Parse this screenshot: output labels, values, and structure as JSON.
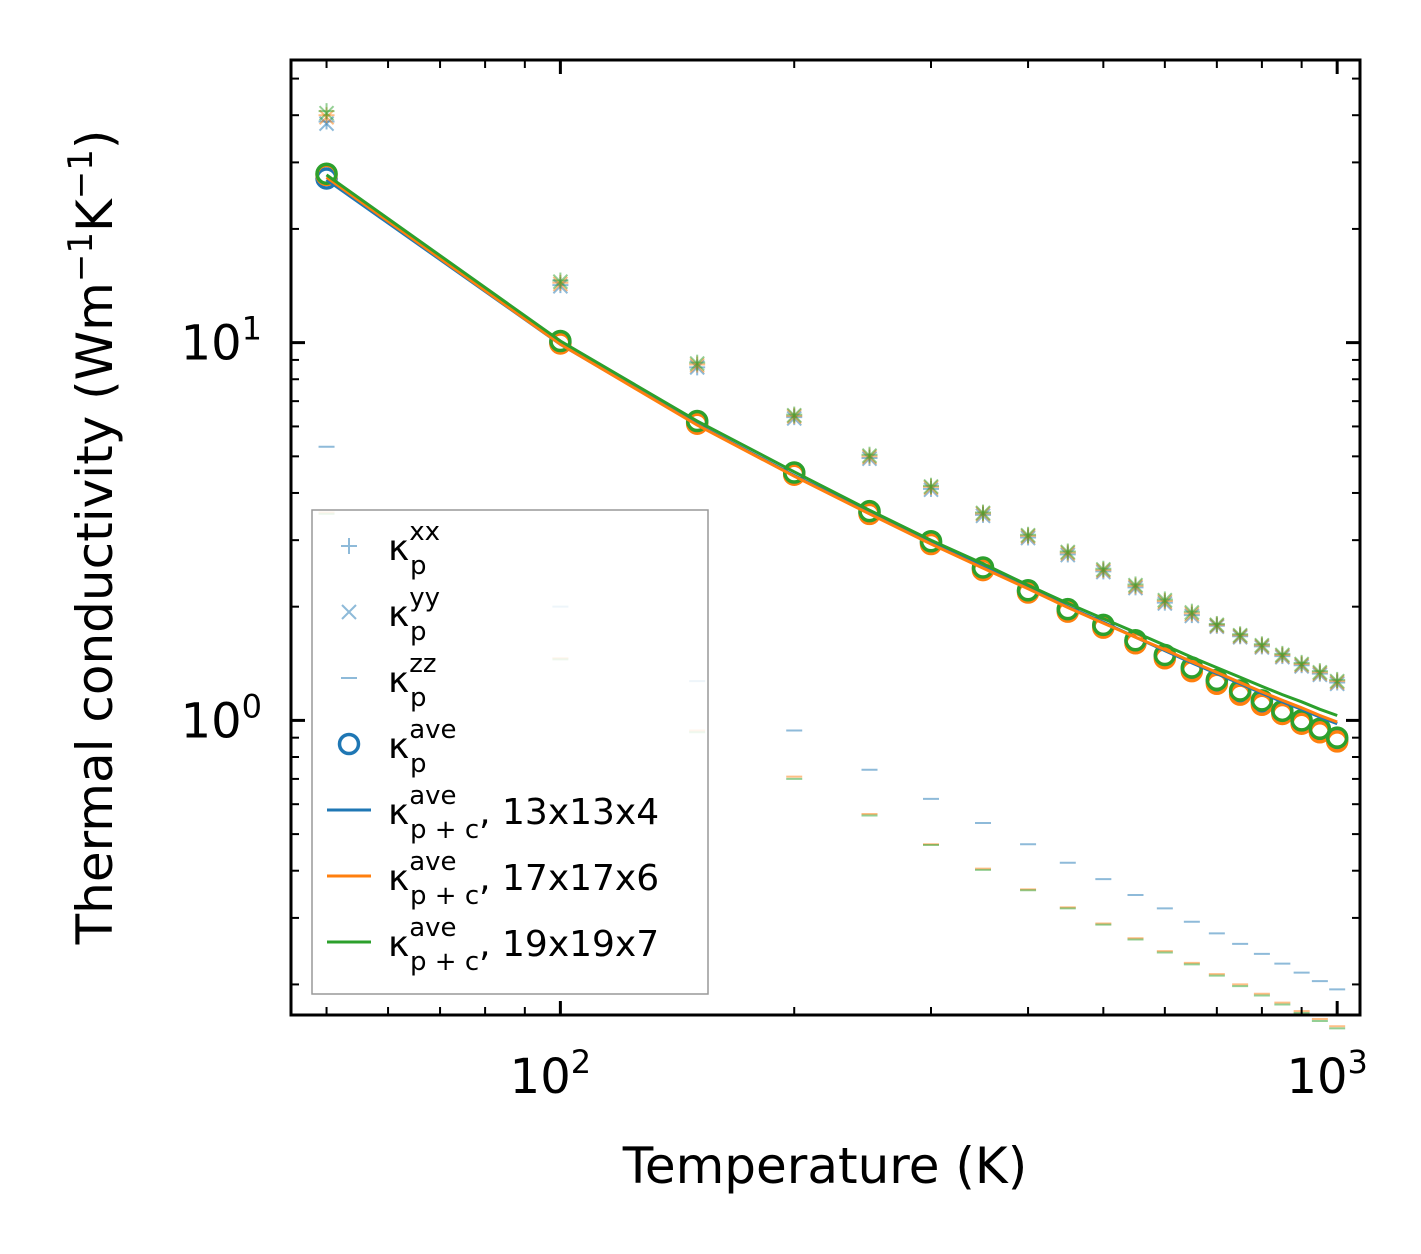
{
  "chart_data": {
    "type": "scatter",
    "xscale": "log",
    "yscale": "log",
    "xlim": [
      45,
      1070
    ],
    "ylim": [
      0.166,
      56
    ],
    "xlabel": "Temperature (K)",
    "ylabel_main": "Thermal conductivity (Wm",
    "ylabel_sup1": "−1",
    "ylabel_mid": "K",
    "ylabel_sup2": "−1",
    "ylabel_end": ")",
    "x_major_ticks": [
      {
        "value": 100,
        "base": "10",
        "exp": "2"
      },
      {
        "value": 1000,
        "base": "10",
        "exp": "3"
      }
    ],
    "y_major_ticks": [
      {
        "value": 1,
        "base": "10",
        "exp": "0"
      },
      {
        "value": 10,
        "base": "10",
        "exp": "1"
      }
    ],
    "x": [
      50,
      100,
      150,
      200,
      250,
      300,
      350,
      400,
      450,
      500,
      550,
      600,
      650,
      700,
      750,
      800,
      850,
      900,
      950,
      1000
    ],
    "markers": [
      {
        "name": "kxx-13x13x4",
        "marker": "plus",
        "color": "#1f77b4",
        "opacity": 0.5,
        "values": [
          38.5,
          14.2,
          8.6,
          6.35,
          4.95,
          4.1,
          3.5,
          3.05,
          2.75,
          2.48,
          2.25,
          2.05,
          1.9,
          1.78,
          1.67,
          1.57,
          1.48,
          1.4,
          1.33,
          1.26
        ]
      },
      {
        "name": "kyy-13x13x4",
        "marker": "x",
        "color": "#1f77b4",
        "opacity": 0.5,
        "values": [
          38.0,
          14.1,
          8.6,
          6.3,
          4.93,
          4.08,
          3.48,
          3.04,
          2.74,
          2.47,
          2.24,
          2.04,
          1.89,
          1.77,
          1.66,
          1.56,
          1.47,
          1.39,
          1.32,
          1.25
        ]
      },
      {
        "name": "kzz-13x13x4",
        "marker": "dash",
        "color": "#1f77b4",
        "opacity": 0.5,
        "values": [
          5.3,
          2.0,
          1.27,
          0.94,
          0.74,
          0.62,
          0.535,
          0.47,
          0.42,
          0.38,
          0.345,
          0.318,
          0.293,
          0.273,
          0.256,
          0.241,
          0.227,
          0.215,
          0.204,
          0.194
        ]
      },
      {
        "name": "kxx-17x17x6",
        "marker": "plus",
        "color": "#ff7f0e",
        "opacity": 0.5,
        "values": [
          40.0,
          14.4,
          8.75,
          6.4,
          5.0,
          4.15,
          3.53,
          3.08,
          2.78,
          2.5,
          2.27,
          2.07,
          1.92,
          1.79,
          1.68,
          1.58,
          1.49,
          1.41,
          1.34,
          1.27
        ]
      },
      {
        "name": "kyy-17x17x6",
        "marker": "x",
        "color": "#ff7f0e",
        "opacity": 0.5,
        "values": [
          39.5,
          14.3,
          8.7,
          6.38,
          4.98,
          4.13,
          3.52,
          3.07,
          2.77,
          2.49,
          2.26,
          2.06,
          1.91,
          1.78,
          1.67,
          1.57,
          1.48,
          1.4,
          1.33,
          1.26
        ]
      },
      {
        "name": "kzz-17x17x6",
        "marker": "dash",
        "color": "#ff7f0e",
        "opacity": 0.5,
        "values": [
          3.55,
          1.46,
          0.94,
          0.71,
          0.565,
          0.47,
          0.405,
          0.357,
          0.32,
          0.29,
          0.265,
          0.245,
          0.228,
          0.213,
          0.2,
          0.189,
          0.179,
          0.17,
          0.162,
          0.155
        ]
      },
      {
        "name": "kxx-19x19x7",
        "marker": "plus",
        "color": "#2ca02c",
        "opacity": 0.5,
        "values": [
          41.0,
          14.6,
          8.85,
          6.45,
          5.05,
          4.18,
          3.55,
          3.1,
          2.8,
          2.52,
          2.29,
          2.09,
          1.94,
          1.8,
          1.69,
          1.59,
          1.5,
          1.42,
          1.35,
          1.28
        ]
      },
      {
        "name": "kyy-19x19x7",
        "marker": "x",
        "color": "#2ca02c",
        "opacity": 0.5,
        "values": [
          40.5,
          14.5,
          8.8,
          6.42,
          5.02,
          4.16,
          3.54,
          3.09,
          2.79,
          2.51,
          2.28,
          2.08,
          1.93,
          1.79,
          1.68,
          1.58,
          1.49,
          1.41,
          1.34,
          1.27
        ]
      },
      {
        "name": "kzz-19x19x7",
        "marker": "dash",
        "color": "#2ca02c",
        "opacity": 0.5,
        "values": [
          3.52,
          1.45,
          0.93,
          0.7,
          0.56,
          0.468,
          0.402,
          0.355,
          0.318,
          0.288,
          0.263,
          0.243,
          0.226,
          0.211,
          0.198,
          0.187,
          0.177,
          0.168,
          0.16,
          0.153
        ]
      },
      {
        "name": "kave-13x13x4",
        "marker": "circle",
        "color": "#1f77b4",
        "opacity": 1,
        "values": [
          27.2,
          10.0,
          6.15,
          4.5,
          3.55,
          2.96,
          2.52,
          2.2,
          1.96,
          1.78,
          1.62,
          1.48,
          1.37,
          1.27,
          1.19,
          1.12,
          1.05,
          0.99,
          0.94,
          0.89
        ]
      },
      {
        "name": "kave-17x17x6",
        "marker": "circle",
        "color": "#ff7f0e",
        "opacity": 1,
        "values": [
          27.8,
          9.95,
          6.1,
          4.47,
          3.52,
          2.93,
          2.5,
          2.18,
          1.94,
          1.76,
          1.6,
          1.46,
          1.35,
          1.25,
          1.17,
          1.1,
          1.04,
          0.98,
          0.93,
          0.88
        ]
      },
      {
        "name": "kave-19x19x7",
        "marker": "circle",
        "color": "#2ca02c",
        "opacity": 1,
        "values": [
          28.0,
          10.1,
          6.2,
          4.53,
          3.58,
          2.98,
          2.54,
          2.21,
          1.97,
          1.79,
          1.63,
          1.49,
          1.38,
          1.28,
          1.2,
          1.13,
          1.06,
          1.0,
          0.95,
          0.9
        ]
      }
    ],
    "lines": [
      {
        "name": "kpc-13x13x4",
        "color": "#1f77b4",
        "values": [
          27.0,
          9.9,
          6.08,
          4.45,
          3.55,
          2.96,
          2.55,
          2.25,
          2.0,
          1.82,
          1.66,
          1.53,
          1.42,
          1.33,
          1.25,
          1.18,
          1.12,
          1.07,
          1.02,
          0.98
        ]
      },
      {
        "name": "kpc-17x17x6",
        "color": "#ff7f0e",
        "values": [
          27.4,
          9.9,
          6.05,
          4.43,
          3.52,
          2.93,
          2.53,
          2.23,
          1.99,
          1.81,
          1.66,
          1.54,
          1.43,
          1.34,
          1.26,
          1.19,
          1.13,
          1.08,
          1.03,
          0.99
        ]
      },
      {
        "name": "kpc-19x19x7",
        "color": "#2ca02c",
        "values": [
          27.8,
          10.1,
          6.2,
          4.55,
          3.6,
          3.0,
          2.6,
          2.28,
          2.04,
          1.86,
          1.71,
          1.58,
          1.47,
          1.38,
          1.3,
          1.23,
          1.17,
          1.12,
          1.07,
          1.03
        ]
      }
    ],
    "legend": {
      "position": "lower-left",
      "entries": [
        {
          "marker": "plus",
          "color": "#1f77b4",
          "opacity": 0.5,
          "base": "κ",
          "sup": "xx",
          "sub": "p",
          "suffix": ""
        },
        {
          "marker": "x",
          "color": "#1f77b4",
          "opacity": 0.5,
          "base": "κ",
          "sup": "yy",
          "sub": "p",
          "suffix": ""
        },
        {
          "marker": "dash",
          "color": "#1f77b4",
          "opacity": 0.5,
          "base": "κ",
          "sup": "zz",
          "sub": "p",
          "suffix": ""
        },
        {
          "marker": "circle",
          "color": "#1f77b4",
          "opacity": 1,
          "base": "κ",
          "sup": "ave",
          "sub": "p",
          "suffix": ""
        },
        {
          "marker": "line",
          "color": "#1f77b4",
          "opacity": 1,
          "base": "κ",
          "sup": "ave",
          "sub": "p + c",
          "suffix": ", 13x13x4"
        },
        {
          "marker": "line",
          "color": "#ff7f0e",
          "opacity": 1,
          "base": "κ",
          "sup": "ave",
          "sub": "p + c",
          "suffix": ", 17x17x6"
        },
        {
          "marker": "line",
          "color": "#2ca02c",
          "opacity": 1,
          "base": "κ",
          "sup": "ave",
          "sub": "p + c",
          "suffix": ", 19x19x7"
        }
      ]
    }
  }
}
